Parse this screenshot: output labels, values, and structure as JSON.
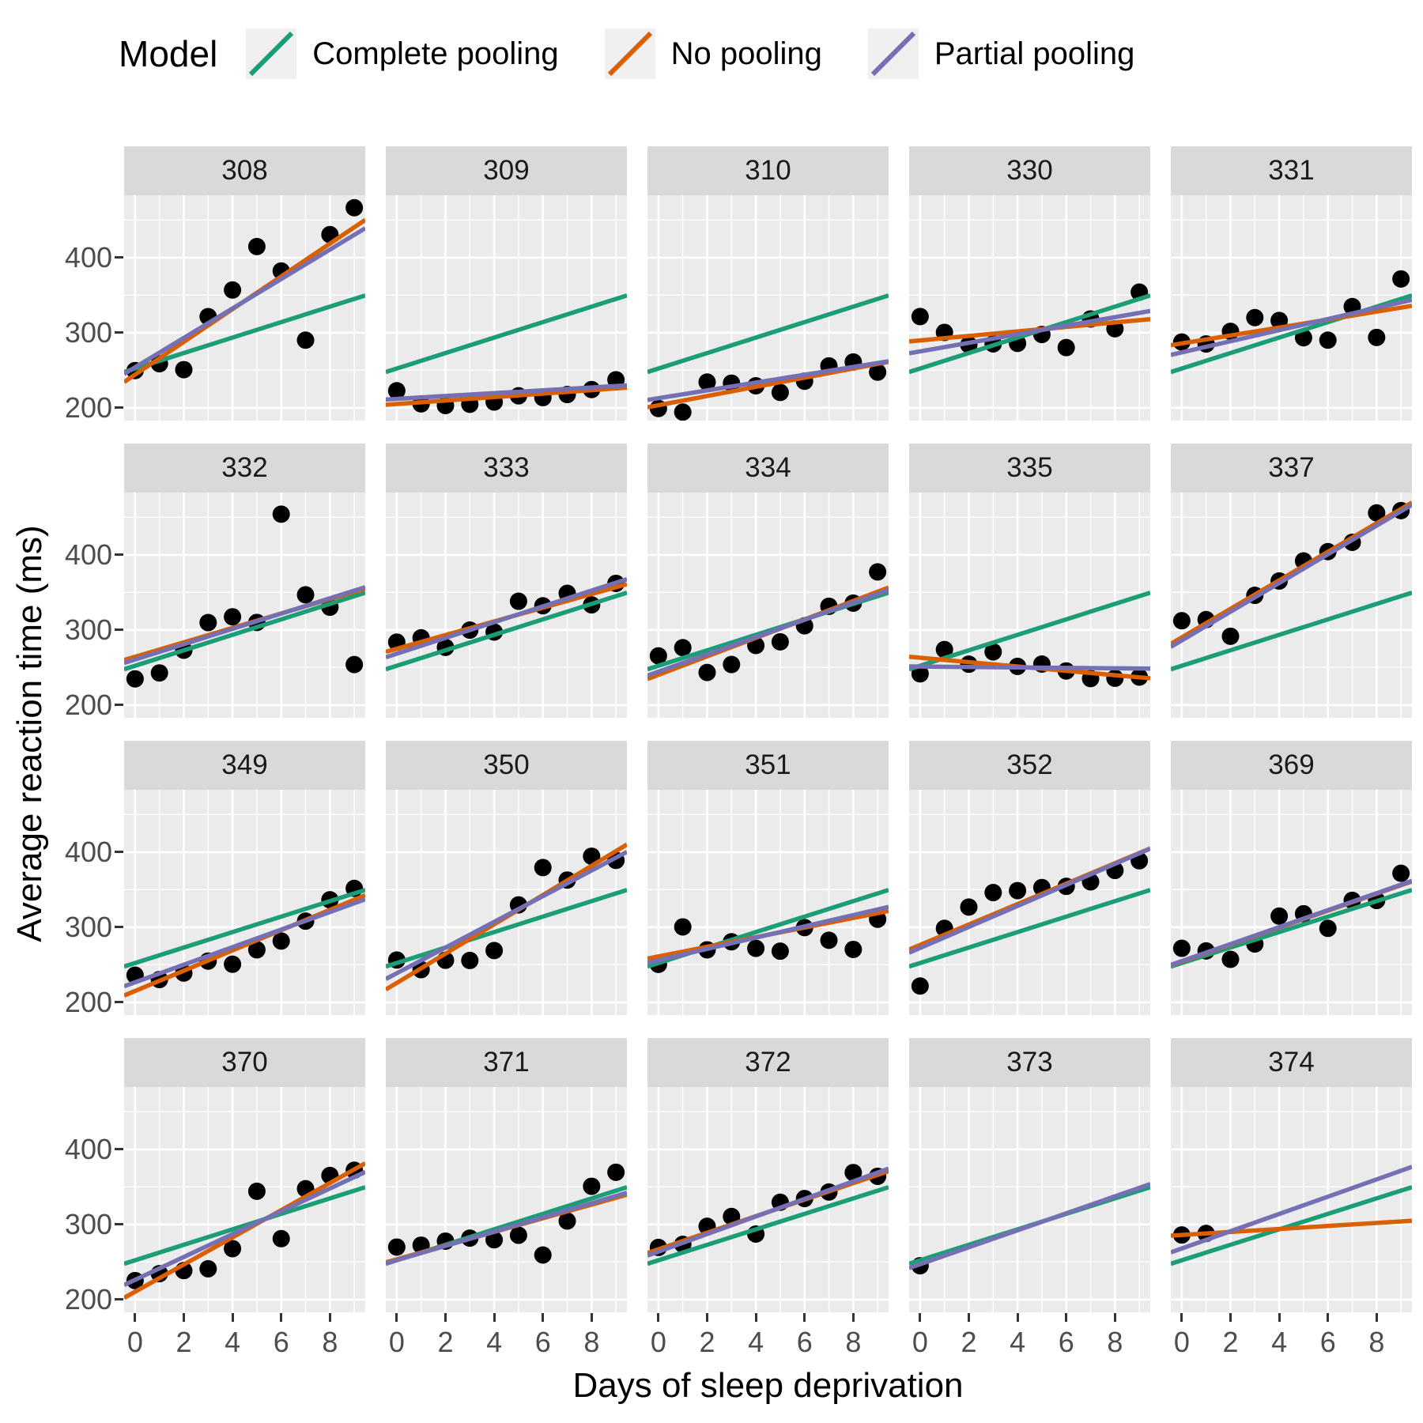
{
  "colors": {
    "panel_bg": "#EBEBEB",
    "strip_bg": "#D9D9D9",
    "gridline": "#FFFFFF",
    "point": "#000000",
    "axis_text": "#4D4D4D",
    "strip_text": "#1A1A1A",
    "legend_key_bg": "#F0F0F0",
    "complete_pooling": "#1B9E77",
    "no_pooling": "#D95F02",
    "partial_pooling": "#7570B3"
  },
  "chart_data": {
    "type": "scatter",
    "subtype": "faceted scatter with per-facet regression lines (sleepstudy data, one facet per subject)",
    "title": "",
    "xlabel": "Days of sleep deprivation",
    "ylabel": "Average reaction time (ms)",
    "legend_title": "Model",
    "legend_position": "top-left",
    "grid": true,
    "x_domain": [
      -0.45,
      9.45
    ],
    "y_domain": [
      183,
      483
    ],
    "x_major": [
      0,
      2,
      4,
      6,
      8
    ],
    "x_minor": [
      1,
      3,
      5,
      7,
      9
    ],
    "y_major": [
      200,
      300,
      400
    ],
    "y_minor": [
      250,
      350,
      450
    ],
    "models": [
      {
        "id": "complete_pooling",
        "label": "Complete pooling",
        "color": "#1B9E77"
      },
      {
        "id": "no_pooling",
        "label": "No pooling",
        "color": "#D95F02"
      },
      {
        "id": "partial_pooling",
        "label": "Partial pooling",
        "color": "#7570B3"
      }
    ],
    "complete_pooling_line": {
      "intercept": 252.3,
      "slope": 10.3
    },
    "facets": [
      {
        "subject": "308",
        "days": [
          0,
          1,
          2,
          3,
          4,
          5,
          6,
          7,
          8,
          9
        ],
        "reaction": [
          249.6,
          258.7,
          250.8,
          321.4,
          356.9,
          414.7,
          382.2,
          290.1,
          430.6,
          466.4
        ],
        "no_pooling": {
          "intercept": 244.2,
          "slope": 21.8
        },
        "partial_pooling": {
          "intercept": 253.9,
          "slope": 19.6
        }
      },
      {
        "subject": "309",
        "days": [
          0,
          1,
          2,
          3,
          4,
          5,
          6,
          7,
          8,
          9
        ],
        "reaction": [
          222.7,
          205.3,
          203.0,
          204.7,
          207.7,
          216.0,
          213.6,
          217.7,
          224.3,
          237.3
        ],
        "no_pooling": {
          "intercept": 205.1,
          "slope": 2.3
        },
        "partial_pooling": {
          "intercept": 211.9,
          "slope": 1.9
        }
      },
      {
        "subject": "310",
        "days": [
          0,
          1,
          2,
          3,
          4,
          5,
          6,
          7,
          8,
          9
        ],
        "reaction": [
          199.1,
          194.3,
          234.3,
          232.8,
          229.3,
          220.5,
          235.4,
          255.8,
          261.0,
          247.5
        ],
        "no_pooling": {
          "intercept": 203.5,
          "slope": 6.1
        },
        "partial_pooling": {
          "intercept": 212.8,
          "slope": 5.2
        }
      },
      {
        "subject": "330",
        "days": [
          0,
          1,
          2,
          3,
          4,
          5,
          6,
          7,
          8,
          9
        ],
        "reaction": [
          321.5,
          300.4,
          283.9,
          285.1,
          285.8,
          297.6,
          280.2,
          318.3,
          305.3,
          354.0
        ],
        "no_pooling": {
          "intercept": 289.7,
          "slope": 3.0
        },
        "partial_pooling": {
          "intercept": 275.1,
          "slope": 5.7
        }
      },
      {
        "subject": "331",
        "days": [
          0,
          1,
          2,
          3,
          4,
          5,
          6,
          7,
          8,
          9
        ],
        "reaction": [
          287.6,
          285.0,
          301.8,
          320.1,
          316.3,
          293.3,
          290.1,
          334.8,
          293.7,
          371.6
        ],
        "no_pooling": {
          "intercept": 285.7,
          "slope": 5.3
        },
        "partial_pooling": {
          "intercept": 273.8,
          "slope": 7.4
        }
      },
      {
        "subject": "332",
        "days": [
          0,
          1,
          2,
          3,
          4,
          5,
          6,
          7,
          8,
          9
        ],
        "reaction": [
          234.9,
          242.8,
          273.0,
          309.8,
          317.5,
          310.0,
          454.2,
          346.8,
          330.3,
          253.9
        ],
        "no_pooling": {
          "intercept": 264.3,
          "slope": 9.6
        },
        "partial_pooling": {
          "intercept": 260.6,
          "slope": 10.2
        }
      },
      {
        "subject": "333",
        "days": [
          0,
          1,
          2,
          3,
          4,
          5,
          6,
          7,
          8,
          9
        ],
        "reaction": [
          283.8,
          289.6,
          276.8,
          299.8,
          297.2,
          338.2,
          332.2,
          348.8,
          333.4,
          362.0
        ],
        "no_pooling": {
          "intercept": 275.0,
          "slope": 9.1
        },
        "partial_pooling": {
          "intercept": 268.4,
          "slope": 10.5
        }
      },
      {
        "subject": "334",
        "days": [
          0,
          1,
          2,
          3,
          4,
          5,
          6,
          7,
          8,
          9
        ],
        "reaction": [
          265.5,
          276.4,
          243.4,
          254.0,
          279.3,
          284.2,
          305.5,
          331.5,
          335.7,
          377.3
        ],
        "no_pooling": {
          "intercept": 240.2,
          "slope": 12.3
        },
        "partial_pooling": {
          "intercept": 244.5,
          "slope": 11.5
        }
      },
      {
        "subject": "335",
        "days": [
          0,
          1,
          2,
          3,
          4,
          5,
          6,
          7,
          8,
          9
        ],
        "reaction": [
          241.6,
          273.9,
          254.4,
          270.8,
          251.5,
          254.6,
          245.4,
          235.3,
          235.7,
          237.2
        ],
        "no_pooling": {
          "intercept": 263.0,
          "slope": -2.9
        },
        "partial_pooling": {
          "intercept": 251.3,
          "slope": -0.3
        }
      },
      {
        "subject": "337",
        "days": [
          0,
          1,
          2,
          3,
          4,
          5,
          6,
          7,
          8,
          9
        ],
        "reaction": [
          312.3,
          313.8,
          291.6,
          346.1,
          365.2,
          391.9,
          404.3,
          416.7,
          455.9,
          458.9
        ],
        "no_pooling": {
          "intercept": 290.1,
          "slope": 19.0
        },
        "partial_pooling": {
          "intercept": 286.1,
          "slope": 19.1
        }
      },
      {
        "subject": "349",
        "days": [
          0,
          1,
          2,
          3,
          4,
          5,
          6,
          7,
          8,
          9
        ],
        "reaction": [
          236.1,
          230.3,
          238.9,
          254.9,
          250.7,
          269.9,
          281.6,
          308.1,
          336.5,
          351.7
        ],
        "no_pooling": {
          "intercept": 215.1,
          "slope": 13.5
        },
        "partial_pooling": {
          "intercept": 226.6,
          "slope": 11.7
        }
      },
      {
        "subject": "350",
        "days": [
          0,
          1,
          2,
          3,
          4,
          5,
          6,
          7,
          8,
          9
        ],
        "reaction": [
          256.3,
          243.5,
          256.0,
          255.7,
          268.9,
          329.7,
          379.4,
          362.8,
          394.5,
          389.0
        ],
        "no_pooling": {
          "intercept": 225.8,
          "slope": 19.5
        },
        "partial_pooling": {
          "intercept": 238.7,
          "slope": 17.1
        }
      },
      {
        "subject": "351",
        "days": [
          0,
          1,
          2,
          3,
          4,
          5,
          6,
          7,
          8,
          9
        ],
        "reaction": [
          250.5,
          300.4,
          269.9,
          280.6,
          271.8,
          268.1,
          299.5,
          282.6,
          270.4,
          310.6
        ],
        "no_pooling": {
          "intercept": 261.1,
          "slope": 6.4
        },
        "partial_pooling": {
          "intercept": 256.1,
          "slope": 7.5
        }
      },
      {
        "subject": "352",
        "days": [
          0,
          1,
          2,
          3,
          4,
          5,
          6,
          7,
          8,
          9
        ],
        "reaction": [
          221.7,
          298.5,
          326.8,
          346.1,
          348.7,
          352.8,
          354.4,
          360.4,
          375.6,
          388.5
        ],
        "no_pooling": {
          "intercept": 276.4,
          "slope": 13.6
        },
        "partial_pooling": {
          "intercept": 272.3,
          "slope": 14.0
        }
      },
      {
        "subject": "369",
        "days": [
          0,
          1,
          2,
          3,
          4,
          5,
          6,
          7,
          8,
          9
        ],
        "reaction": [
          271.9,
          268.4,
          257.2,
          277.7,
          314.8,
          317.9,
          298.5,
          335.7,
          335.6,
          371.8
        ],
        "no_pooling": {
          "intercept": 254.2,
          "slope": 11.3
        },
        "partial_pooling": {
          "intercept": 254.9,
          "slope": 11.3
        }
      },
      {
        "subject": "370",
        "days": [
          0,
          1,
          2,
          3,
          4,
          5,
          6,
          7,
          8,
          9
        ],
        "reaction": [
          225.3,
          234.5,
          238.6,
          241.0,
          267.8,
          344.2,
          281.1,
          347.6,
          365.2,
          372.2
        ],
        "no_pooling": {
          "intercept": 210.4,
          "slope": 18.1
        },
        "partial_pooling": {
          "intercept": 226.3,
          "slope": 15.2
        }
      },
      {
        "subject": "371",
        "days": [
          0,
          1,
          2,
          3,
          4,
          5,
          6,
          7,
          8,
          9
        ],
        "reaction": [
          269.9,
          272.4,
          277.8,
          281.8,
          279.6,
          285.6,
          259.3,
          304.6,
          350.8,
          369.5
        ],
        "no_pooling": {
          "intercept": 253.6,
          "slope": 9.1
        },
        "partial_pooling": {
          "intercept": 252.4,
          "slope": 9.5
        }
      },
      {
        "subject": "372",
        "days": [
          0,
          1,
          2,
          3,
          4,
          5,
          6,
          7,
          8,
          9
        ],
        "reaction": [
          269.4,
          273.5,
          297.6,
          310.6,
          287.2,
          329.6,
          334.5,
          343.2,
          369.1,
          364.1
        ],
        "no_pooling": {
          "intercept": 267.0,
          "slope": 11.0
        },
        "partial_pooling": {
          "intercept": 263.8,
          "slope": 11.7
        }
      },
      {
        "subject": "373",
        "days": [
          0
        ],
        "reaction": [
          245.0
        ],
        "no_pooling": null,
        "partial_pooling": {
          "intercept": 247.0,
          "slope": 11.3
        }
      },
      {
        "subject": "374",
        "days": [
          0,
          1
        ],
        "reaction": [
          286.0,
          288.0
        ],
        "no_pooling": {
          "intercept": 286.0,
          "slope": 2.0
        },
        "partial_pooling": {
          "intercept": 268.0,
          "slope": 11.5
        }
      }
    ]
  }
}
